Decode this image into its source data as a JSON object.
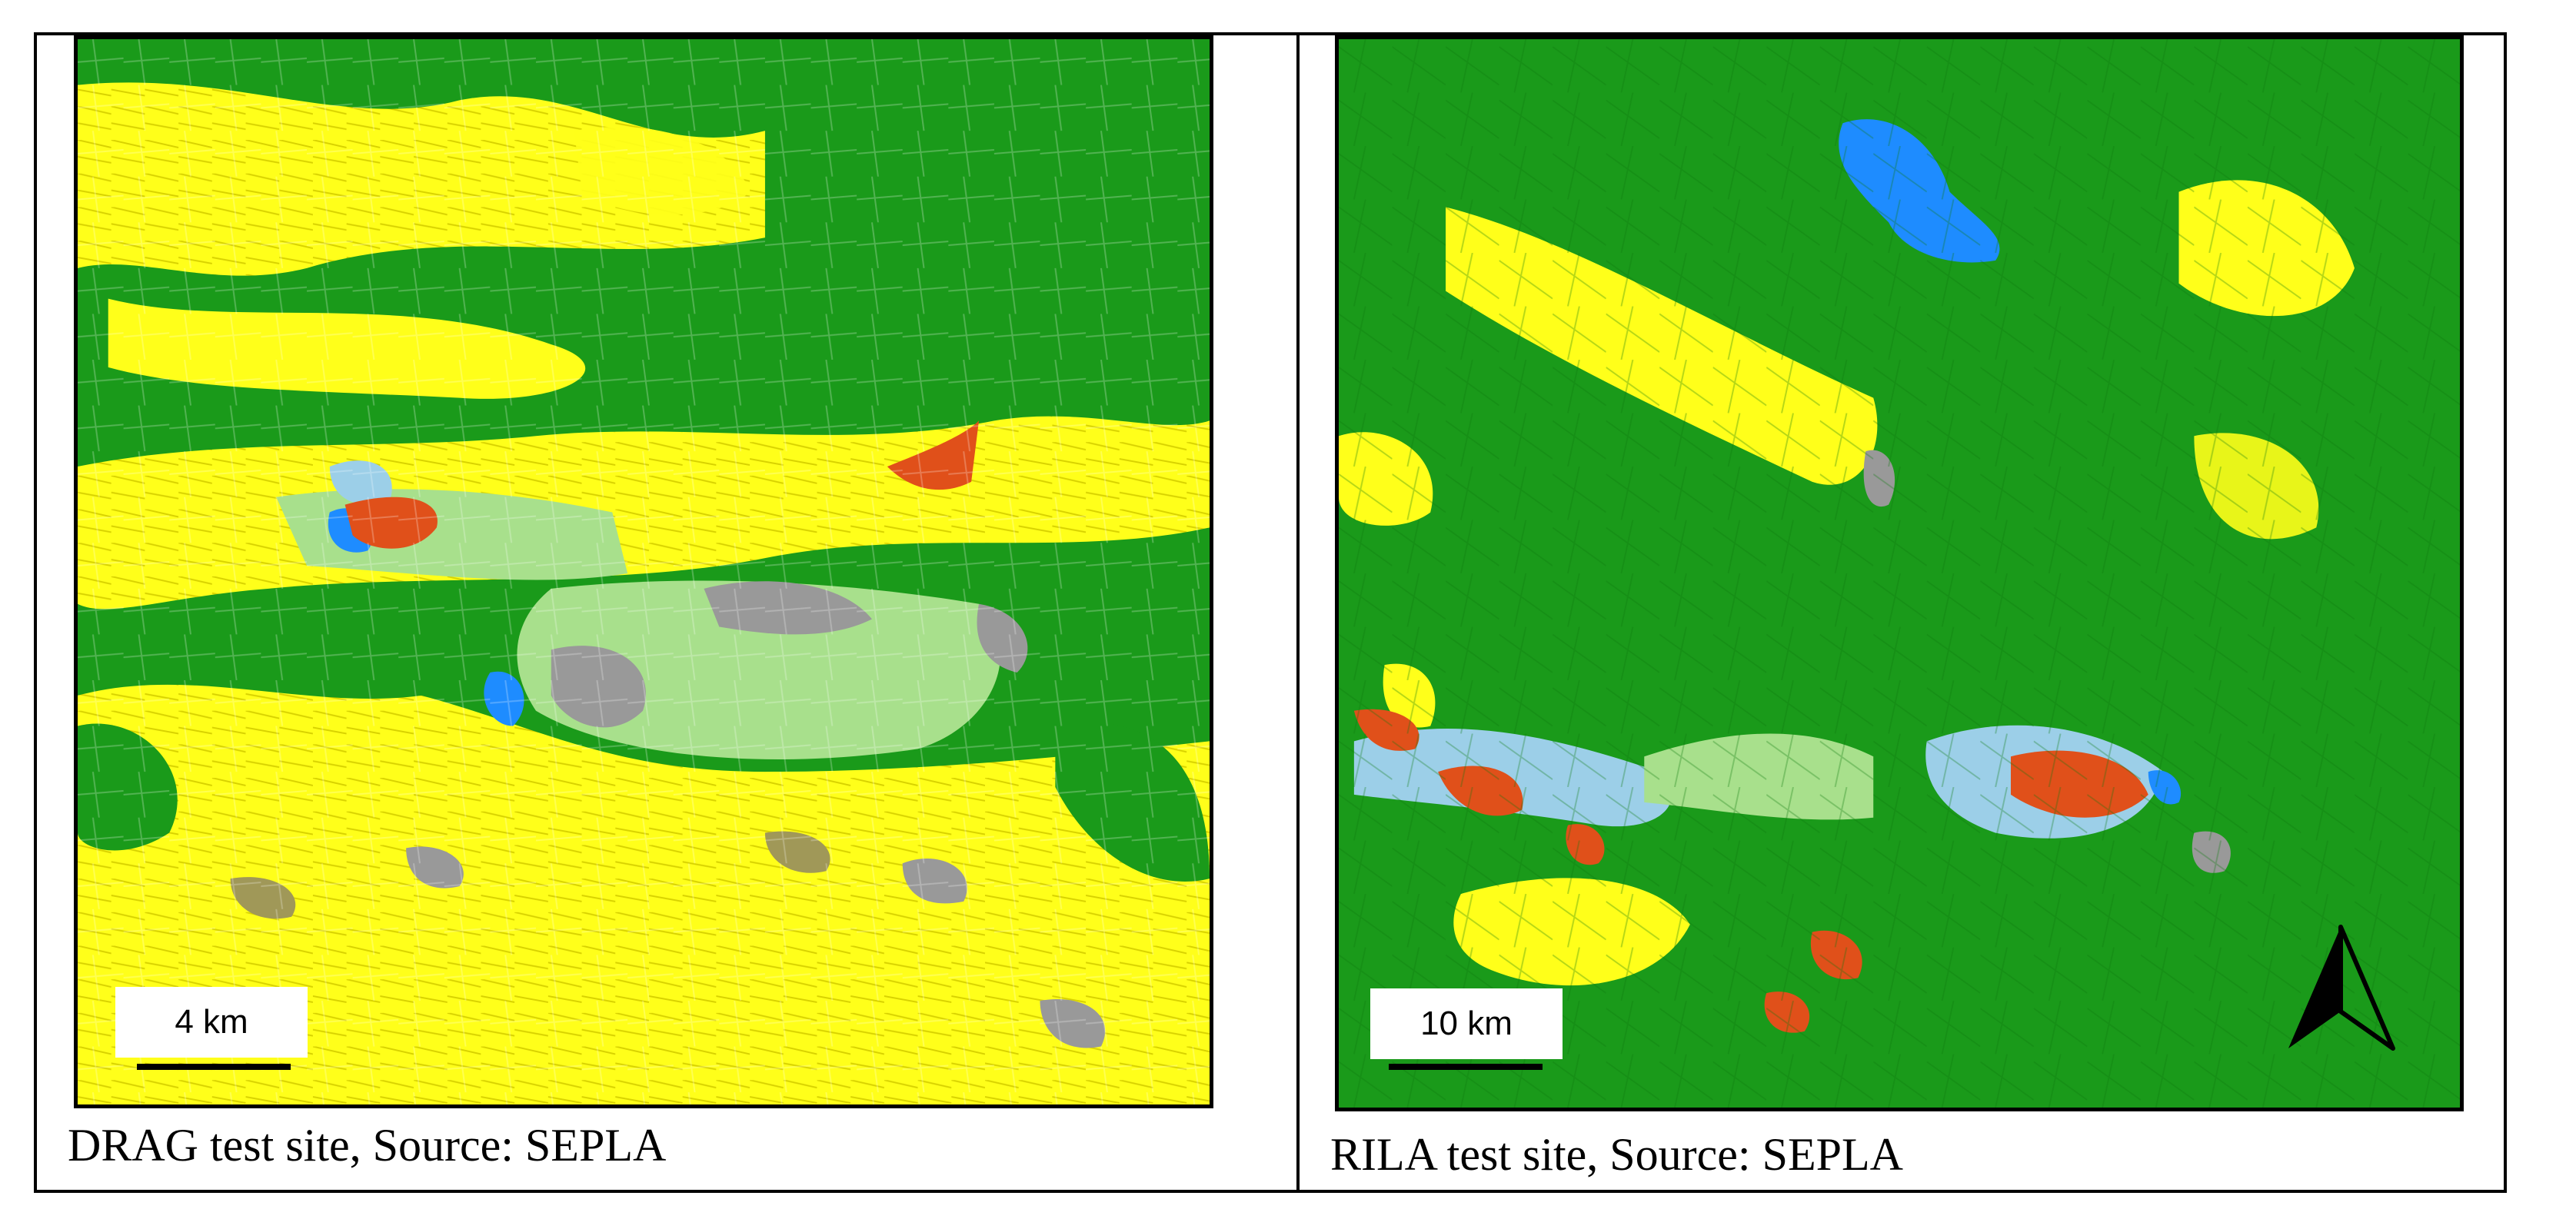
{
  "panels": [
    {
      "scale_label": "4 km",
      "caption": "DRAG test site, Source: SEPLA"
    },
    {
      "scale_label": "10 km",
      "caption": "RILA test site, Source: SEPLA"
    }
  ],
  "map_colors": {
    "forest": "#1a9a1a",
    "agriculture": "#ffff1a",
    "grassland": "#a8e08c",
    "urban": "#999999",
    "water": "#1e8cff",
    "wetland": "#9ccfe8",
    "burned": "#e0501a",
    "shrub": "#a09858",
    "roads": "#ffffff"
  },
  "icons": {
    "north": "north-arrow-icon"
  }
}
